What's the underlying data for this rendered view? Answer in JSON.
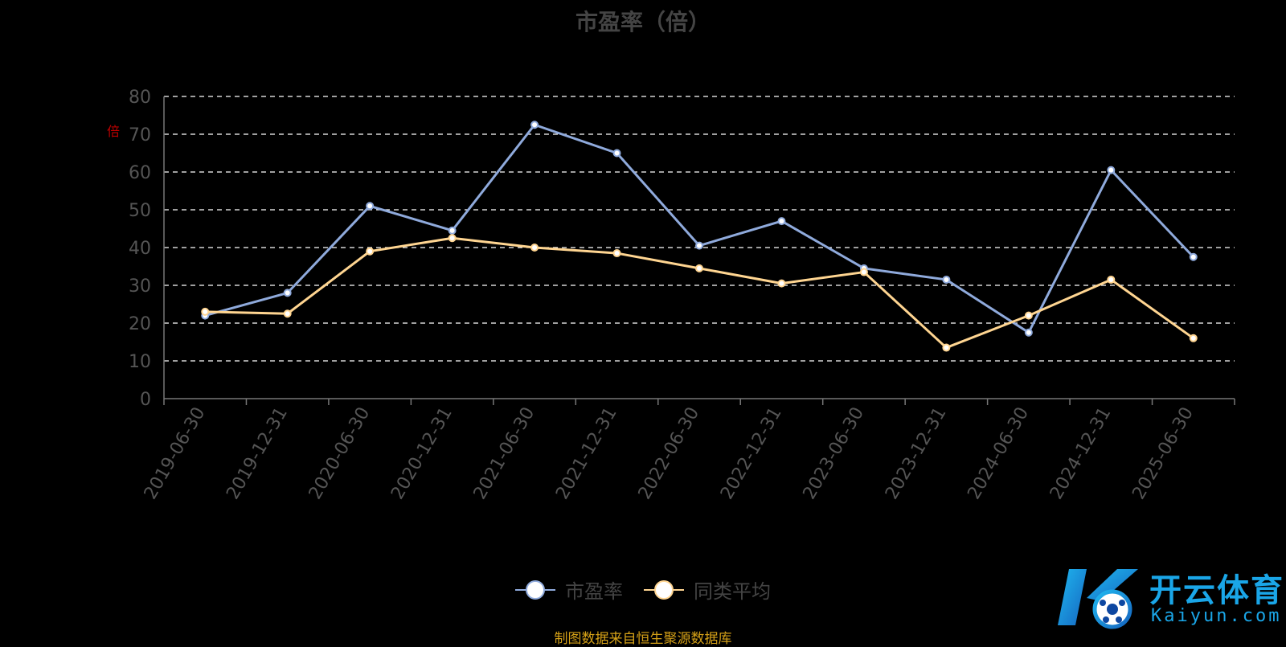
{
  "chart_data": {
    "type": "line",
    "title": "市盈率（倍）",
    "ylabel_mark": "倍",
    "ylim": [
      0,
      80
    ],
    "yticks": [
      0,
      10,
      20,
      30,
      40,
      50,
      60,
      70,
      80
    ],
    "grid": true,
    "legend_position": "bottom-center",
    "categories": [
      "2019-06-30",
      "2019-12-31",
      "2020-06-30",
      "2020-12-31",
      "2021-06-30",
      "2021-12-31",
      "2022-06-30",
      "2022-12-31",
      "2023-06-30",
      "2023-12-31",
      "2024-06-30",
      "2024-12-31",
      "2025-06-30"
    ],
    "series": [
      {
        "name": "市盈率",
        "color": "#8faadc",
        "values": [
          22,
          28,
          51,
          44.5,
          72.5,
          65,
          40.5,
          47,
          34.5,
          31.5,
          17.5,
          60.5,
          37.5
        ]
      },
      {
        "name": "同类平均",
        "color": "#ffd591",
        "values": [
          23,
          22.5,
          39,
          42.5,
          40,
          38.5,
          34.5,
          30.5,
          33.5,
          13.5,
          22,
          31.5,
          16
        ]
      }
    ]
  },
  "source": "制图数据来自恒生聚源数据库",
  "logo": {
    "name": "开云体育",
    "domain": "Kaiyun.com"
  }
}
